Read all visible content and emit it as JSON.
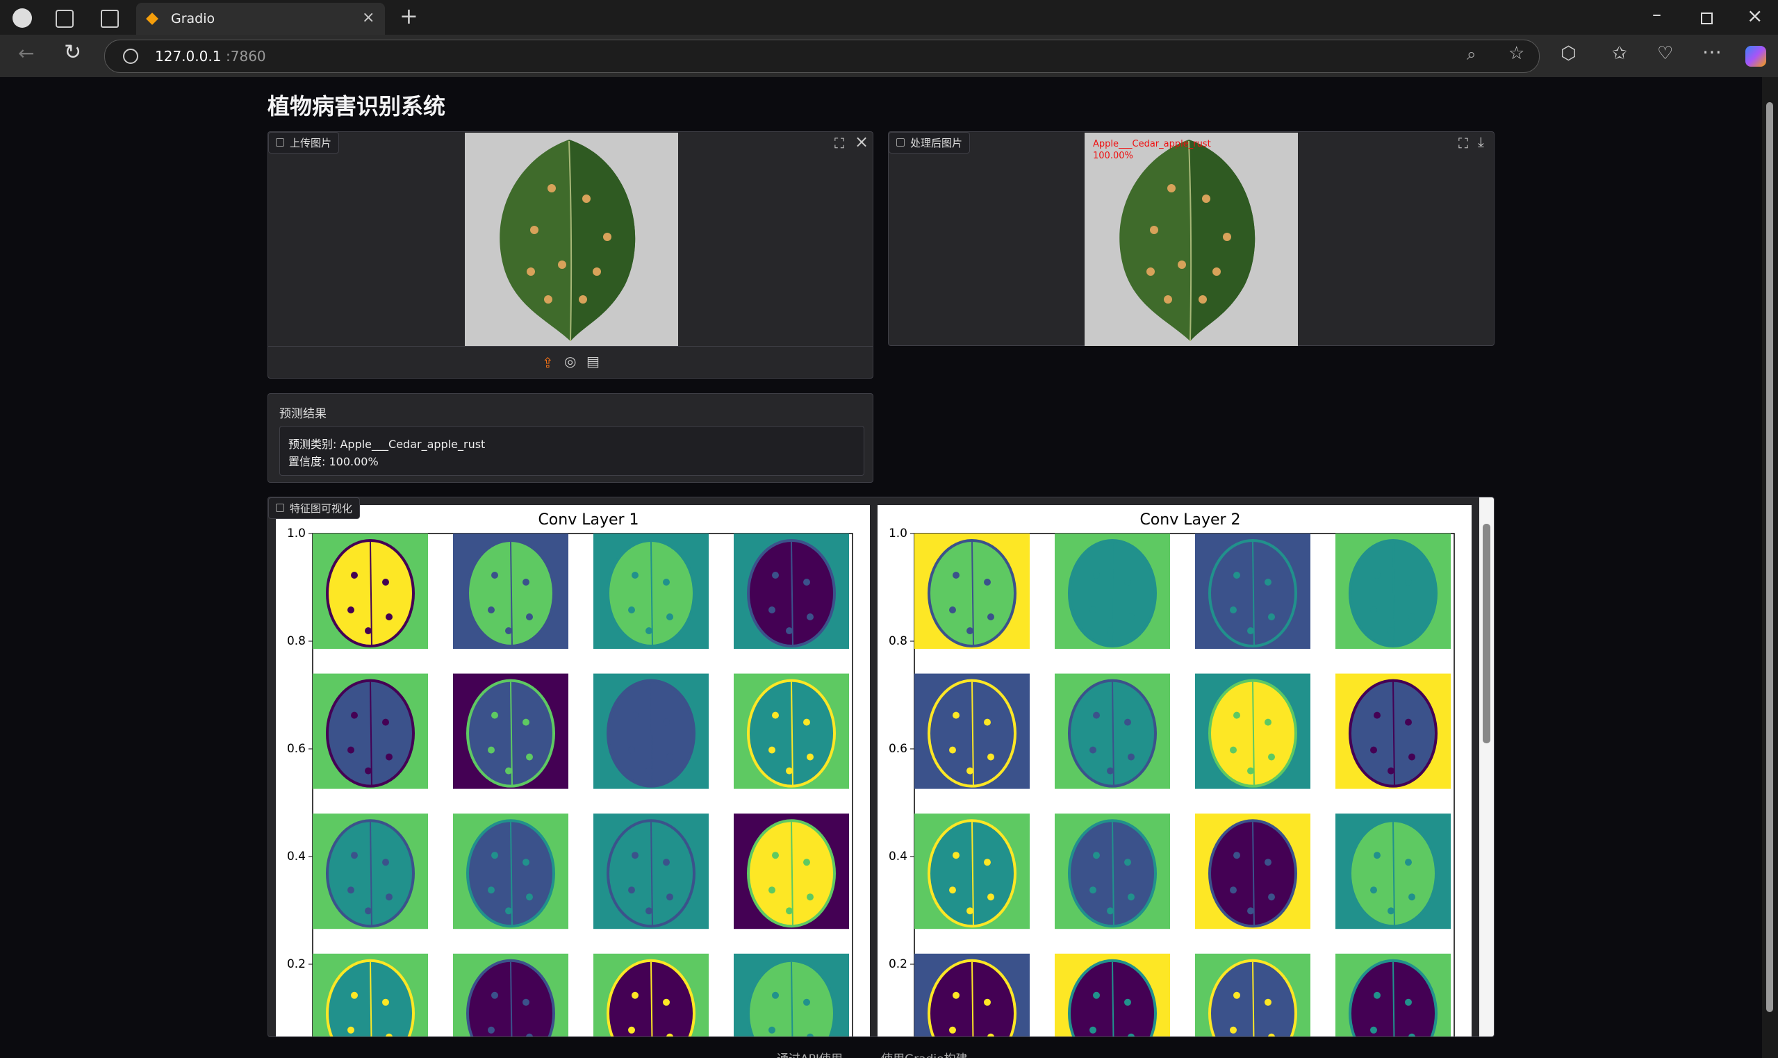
{
  "browser": {
    "tab_title": "Gradio",
    "url_host": "127.0.0.1",
    "url_port": ":7860"
  },
  "app": {
    "title": "植物病害识别系统",
    "upload": {
      "label": "上传图片"
    },
    "processed": {
      "label": "处理后图片",
      "overlay": [
        "Apple___Cedar_apple_rust",
        "100.00%"
      ]
    },
    "result": {
      "label": "预测结果",
      "lines": [
        "预测类别: Apple___Cedar_apple_rust",
        "置信度: 100.00%"
      ]
    },
    "features": {
      "label": "特征图可视化",
      "plots": [
        {
          "title": "Conv Layer 1",
          "yticks": [
            "1.0",
            "0.8",
            "0.6",
            "0.4",
            "0.2"
          ]
        },
        {
          "title": "Conv Layer 2",
          "yticks": [
            "1.0",
            "0.8",
            "0.6",
            "0.4",
            "0.2"
          ]
        }
      ]
    }
  },
  "footer": [
    "通过API使用",
    "使用Gradio构建"
  ]
}
